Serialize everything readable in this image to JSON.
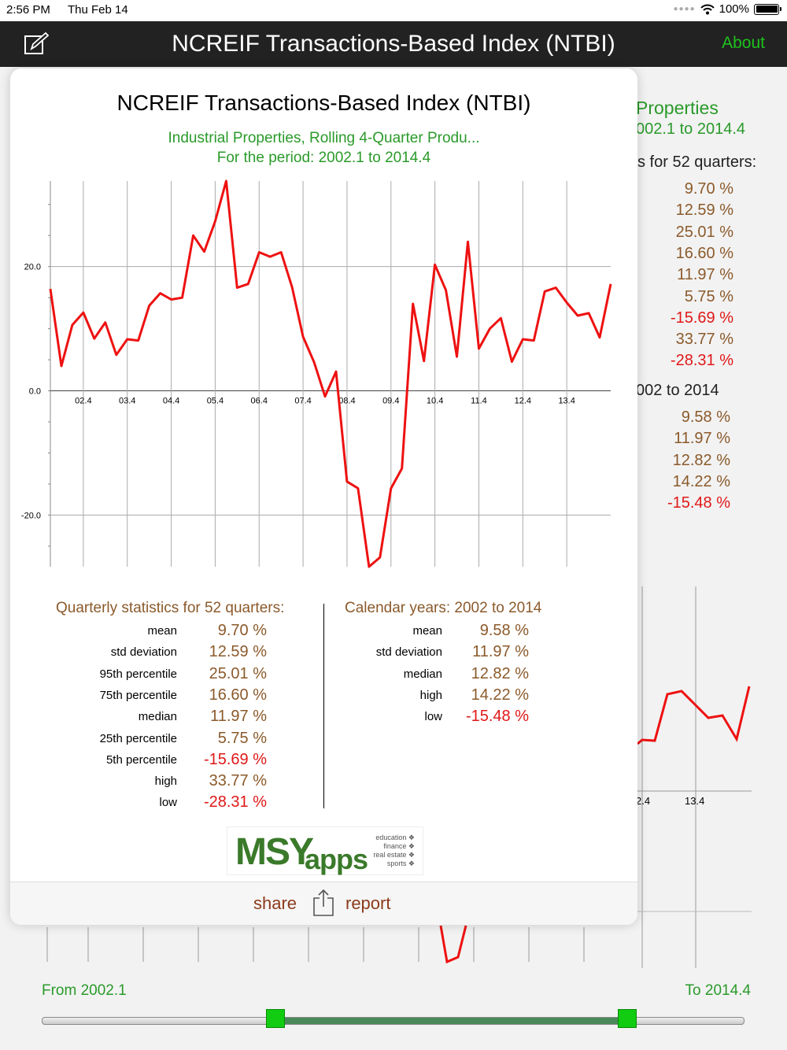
{
  "status": {
    "time": "2:56 PM",
    "date": "Thu Feb 14",
    "battery": "100%"
  },
  "nav": {
    "title": "NCREIF Transactions-Based Index (NTBI)",
    "about": "About",
    "edit_icon": "edit-icon"
  },
  "background": {
    "title_frag": "Properties",
    "period_frag": "002.1 to 2014.4",
    "stats_head_frag": "s for 52 quarters:",
    "values": [
      "9.70 %",
      "12.59 %",
      "25.01 %",
      "16.60 %",
      "11.97 %",
      "5.75 %",
      "-15.69 %",
      "33.77 %",
      "-28.31 %"
    ],
    "cal_head_frag": "002 to 2014",
    "cal_values": [
      "9.58 %",
      "11.97 %",
      "12.82 %",
      "14.22 %",
      "-15.48 %"
    ],
    "tick_a": "2.4",
    "tick_b": "13.4"
  },
  "card": {
    "title": "NCREIF Transactions-Based Index (NTBI)",
    "subtitle": "Industrial Properties, Rolling 4-Quarter Produ...",
    "period": "For the period: 2002.1 to 2014.4",
    "quarterly": {
      "heading": "Quarterly statistics for 52 quarters:",
      "rows": [
        {
          "label": "mean",
          "value": "9.70 %",
          "neg": false
        },
        {
          "label": "std deviation",
          "value": "12.59 %",
          "neg": false
        },
        {
          "label": "95th percentile",
          "value": "25.01 %",
          "neg": false
        },
        {
          "label": "75th percentile",
          "value": "16.60 %",
          "neg": false
        },
        {
          "label": "median",
          "value": "11.97 %",
          "neg": false
        },
        {
          "label": "25th percentile",
          "value": "5.75 %",
          "neg": false
        },
        {
          "label": "5th percentile",
          "value": "-15.69 %",
          "neg": true
        },
        {
          "label": "high",
          "value": "33.77 %",
          "neg": false
        },
        {
          "label": "low",
          "value": "-28.31 %",
          "neg": true
        }
      ]
    },
    "calendar": {
      "heading": "Calendar years: 2002 to 2014",
      "rows": [
        {
          "label": "mean",
          "value": "9.58 %",
          "neg": false
        },
        {
          "label": "std deviation",
          "value": "11.97 %",
          "neg": false
        },
        {
          "label": "median",
          "value": "12.82 %",
          "neg": false
        },
        {
          "label": "high",
          "value": "14.22 %",
          "neg": false
        },
        {
          "label": "low",
          "value": "-15.48 %",
          "neg": true
        }
      ]
    },
    "logo": {
      "msy": "MSY",
      "apps": "apps",
      "tags": [
        "education ❖",
        "finance ❖",
        "real estate ❖",
        "sports ❖"
      ]
    },
    "share_label": "share",
    "report_label": "report",
    "share_icon": "share-icon"
  },
  "range": {
    "from": "From 2002.1",
    "to": "To 2014.4",
    "from_fraction": 0.333,
    "to_fraction": 0.833
  },
  "chart_data": {
    "type": "line",
    "title": "",
    "xlabel": "",
    "ylabel": "",
    "x_ticks": [
      "02.4",
      "03.4",
      "04.4",
      "05.4",
      "06.4",
      "07.4",
      "08.4",
      "09.4",
      "10.4",
      "11.4",
      "12.4",
      "13.4"
    ],
    "y_ticks": [
      "20.0",
      "0.0",
      "-20.0"
    ],
    "y_tick_values": [
      20,
      0,
      -20
    ],
    "ylim": [
      -28.31,
      33.77
    ],
    "grid": true,
    "series": [
      {
        "color": "#ee1111",
        "values": [
          16.4,
          4.0,
          10.6,
          12.6,
          8.4,
          11.0,
          5.8,
          8.3,
          8.1,
          13.7,
          15.7,
          14.7,
          15.0,
          25.0,
          22.4,
          27.3,
          33.77,
          16.6,
          17.2,
          22.3,
          21.6,
          22.3,
          16.7,
          8.7,
          4.6,
          -0.9,
          3.1,
          -14.6,
          -15.69,
          -28.31,
          -26.8,
          -15.7,
          -12.5,
          14.0,
          4.8,
          20.3,
          16.2,
          5.5,
          24.0,
          6.8,
          10.0,
          11.7,
          4.7,
          8.3,
          8.1,
          16.0,
          16.6,
          14.2,
          12.1,
          12.5,
          8.6,
          17.2
        ]
      }
    ]
  }
}
